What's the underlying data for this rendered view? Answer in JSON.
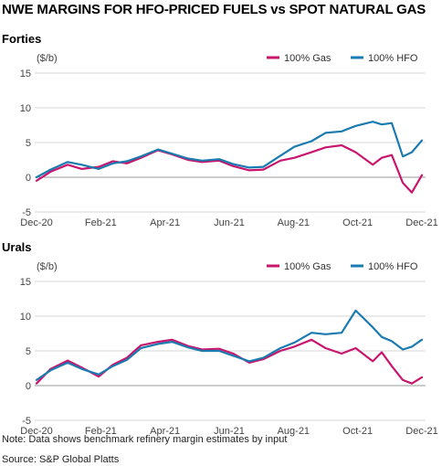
{
  "title": "NWE MARGINS FOR HFO-PRICED FUELS vs SPOT NATURAL GAS",
  "note": "Note: Data shows benchmark refinery margin estimates by input",
  "source": "Source: S&P Global Platts",
  "colors": {
    "gas": "#c8166e",
    "hfo": "#1b7bb0",
    "grid": "#d4d4d4"
  },
  "chart_data": [
    {
      "type": "line",
      "title": "Forties",
      "ylabel": "($/b)",
      "ylim": [
        -5,
        15
      ],
      "yticks": [
        "-5",
        "0",
        "5",
        "10",
        "15"
      ],
      "x_tick_labels": [
        "Dec-20",
        "Feb-21",
        "Apr-21",
        "Jun-21",
        "Aug-21",
        "Oct-21",
        "Dec-21"
      ],
      "legend_position": "top-right",
      "grid": true,
      "x": [
        "2020-12-01",
        "2020-12-15",
        "2021-01-01",
        "2021-01-15",
        "2021-02-01",
        "2021-02-15",
        "2021-03-01",
        "2021-03-15",
        "2021-04-01",
        "2021-04-15",
        "2021-05-01",
        "2021-05-15",
        "2021-06-01",
        "2021-06-15",
        "2021-07-01",
        "2021-07-15",
        "2021-08-01",
        "2021-08-15",
        "2021-09-01",
        "2021-09-15",
        "2021-10-01",
        "2021-10-15",
        "2021-11-01",
        "2021-11-10",
        "2021-11-20",
        "2021-12-01",
        "2021-12-10",
        "2021-12-20"
      ],
      "series": [
        {
          "name": "100% Gas",
          "color": "#c8166e",
          "values": [
            -0.5,
            0.8,
            1.8,
            1.2,
            1.5,
            2.3,
            2.0,
            2.8,
            3.9,
            3.3,
            2.5,
            2.2,
            2.4,
            1.6,
            1.0,
            1.1,
            2.4,
            2.8,
            3.6,
            4.3,
            4.6,
            3.6,
            1.8,
            2.8,
            3.2,
            -0.8,
            -2.2,
            0.3
          ]
        },
        {
          "name": "100% HFO",
          "color": "#1b7bb0",
          "values": [
            0.0,
            1.1,
            2.2,
            1.8,
            1.2,
            2.0,
            2.3,
            3.0,
            4.0,
            3.4,
            2.7,
            2.4,
            2.6,
            1.9,
            1.4,
            1.5,
            3.1,
            4.4,
            5.2,
            6.4,
            6.6,
            7.4,
            8.0,
            7.6,
            7.8,
            3.0,
            3.6,
            5.3
          ]
        }
      ]
    },
    {
      "type": "line",
      "title": "Urals",
      "ylabel": "($/b)",
      "ylim": [
        -5,
        15
      ],
      "yticks": [
        "-5",
        "0",
        "5",
        "10",
        "15"
      ],
      "x_tick_labels": [
        "Dec-20",
        "Feb-21",
        "Apr-21",
        "Jun-21",
        "Aug-21",
        "Oct-21",
        "Dec-21"
      ],
      "legend_position": "top-right",
      "grid": true,
      "x": [
        "2020-12-01",
        "2020-12-15",
        "2021-01-01",
        "2021-01-15",
        "2021-02-01",
        "2021-02-15",
        "2021-03-01",
        "2021-03-15",
        "2021-04-01",
        "2021-04-15",
        "2021-05-01",
        "2021-05-15",
        "2021-06-01",
        "2021-06-15",
        "2021-07-01",
        "2021-07-15",
        "2021-08-01",
        "2021-08-15",
        "2021-09-01",
        "2021-09-15",
        "2021-10-01",
        "2021-10-15",
        "2021-11-01",
        "2021-11-10",
        "2021-11-20",
        "2021-12-01",
        "2021-12-10",
        "2021-12-20"
      ],
      "series": [
        {
          "name": "100% Gas",
          "color": "#c8166e",
          "values": [
            0.3,
            2.4,
            3.6,
            2.6,
            1.3,
            3.0,
            4.0,
            5.8,
            6.3,
            6.6,
            5.7,
            5.2,
            5.3,
            4.6,
            3.3,
            3.8,
            5.0,
            5.6,
            6.6,
            5.4,
            4.6,
            5.4,
            3.5,
            4.8,
            2.8,
            0.8,
            0.3,
            1.2
          ]
        },
        {
          "name": "100% HFO",
          "color": "#1b7bb0",
          "values": [
            0.8,
            2.2,
            3.3,
            2.4,
            1.6,
            2.8,
            3.7,
            5.4,
            6.0,
            6.3,
            5.5,
            5.0,
            5.0,
            4.3,
            3.5,
            4.0,
            5.4,
            6.2,
            7.6,
            7.4,
            7.6,
            10.8,
            8.4,
            7.0,
            6.4,
            5.2,
            5.6,
            6.6
          ]
        }
      ]
    }
  ]
}
